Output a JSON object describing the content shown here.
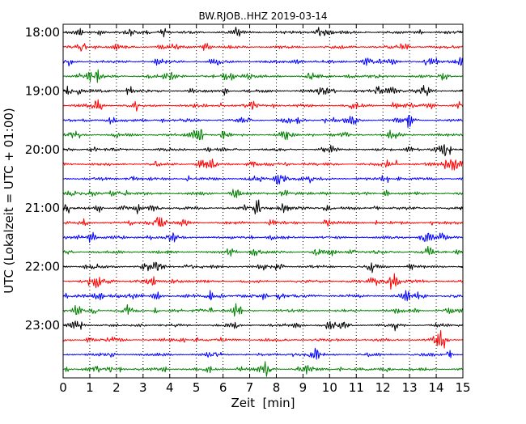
{
  "chart_data": {
    "type": "line",
    "title": "BW.RJOB..HHZ 2019-03-14",
    "xlabel": "Zeit  [min]",
    "ylabel": "UTC (Lokalzeit = UTC + 01:00)",
    "xlim": [
      0,
      15
    ],
    "x_ticks": [
      "0",
      "1",
      "2",
      "3",
      "4",
      "5",
      "6",
      "7",
      "8",
      "9",
      "10",
      "11",
      "12",
      "13",
      "14",
      "15"
    ],
    "y_tick_labels": [
      "18:00",
      "19:00",
      "20:00",
      "21:00",
      "22:00",
      "23:00"
    ],
    "trace_interval_minutes": 15,
    "trace_count": 24,
    "first_trace_start": "18:00",
    "last_trace_start": "23:45",
    "trace_colors": [
      "#000000",
      "#ff0000",
      "#0000ff",
      "#008000"
    ],
    "grid": {
      "x": true,
      "y": false,
      "style": "dotted"
    },
    "legend": "none"
  }
}
